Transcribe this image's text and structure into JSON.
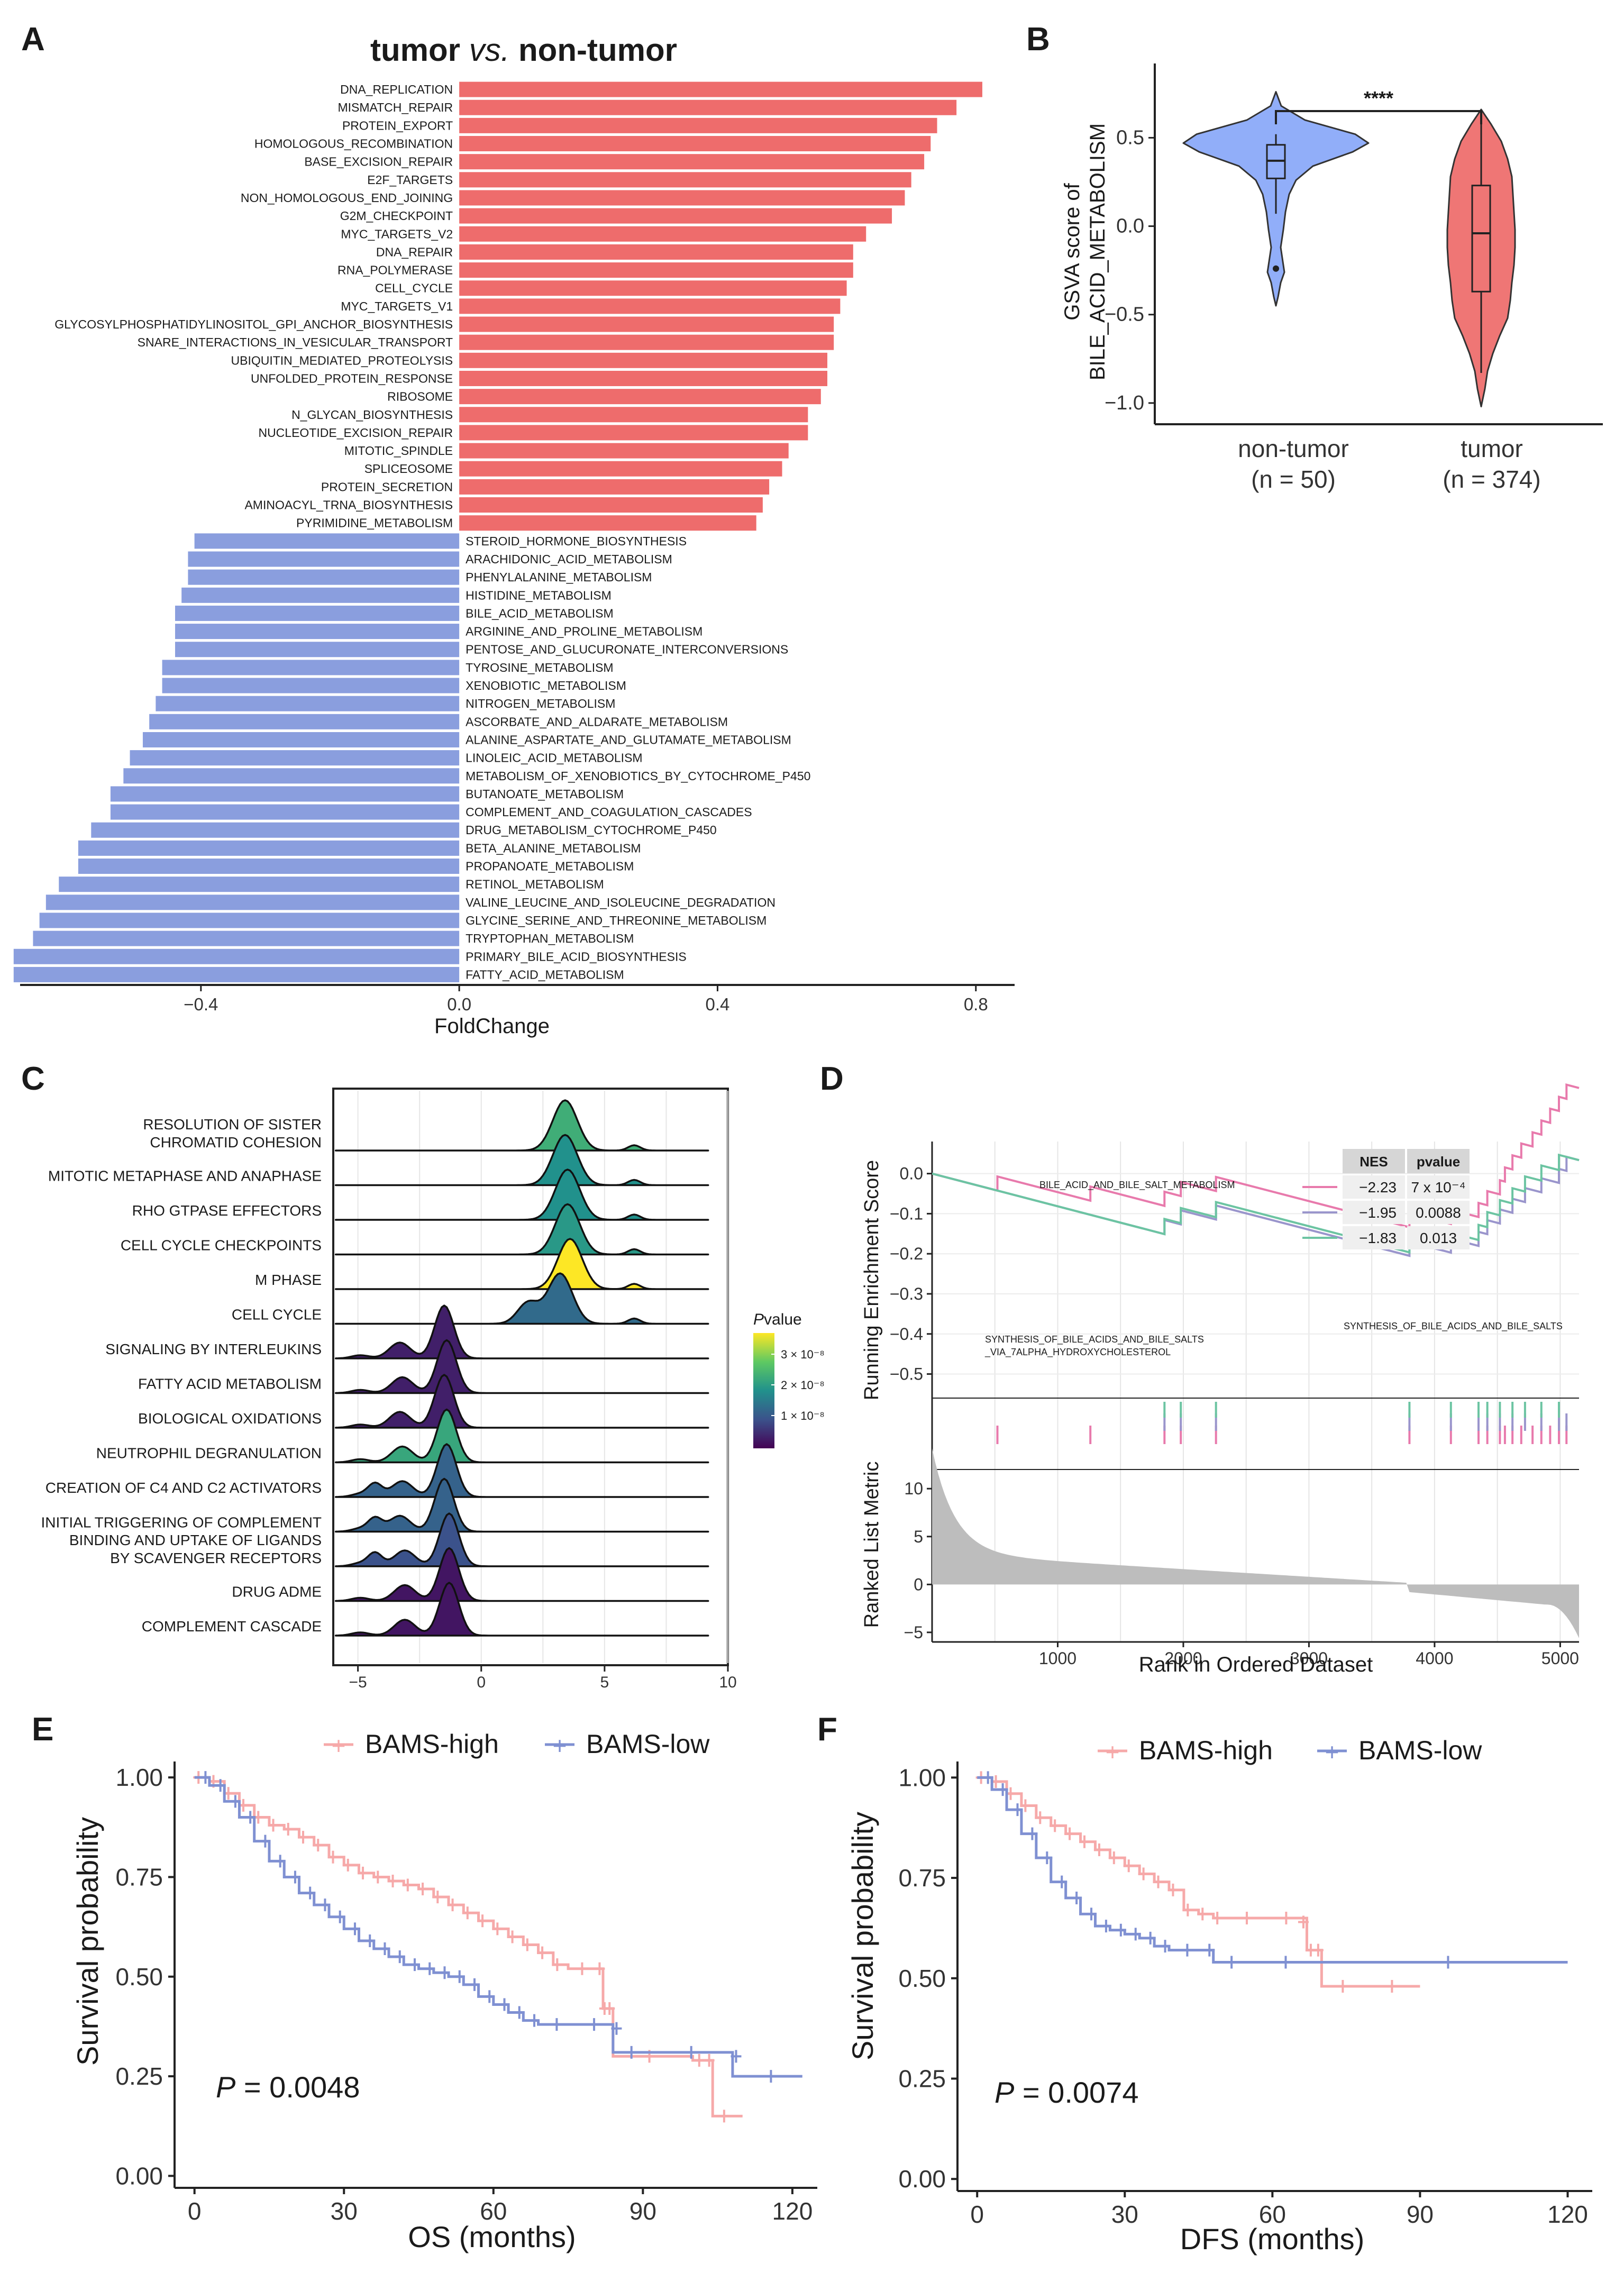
{
  "panels": {
    "a": "A",
    "b": "B",
    "c": "C",
    "d": "D",
    "e": "E",
    "f": "F"
  },
  "colors": {
    "up": "#ee6c6c",
    "down": "#8a9ede",
    "high": "#f6a9a9",
    "low": "#7f90d2",
    "esPink": "#e87aac",
    "esPurple": "#9a95cc",
    "esGreen": "#6cc4a2",
    "rank": "#bdbdbd"
  },
  "chart_data": [
    {
      "id": "A",
      "type": "bar",
      "orientation": "horizontal",
      "title": {
        "a": "tumor ",
        "b": "vs.",
        "c": " non-tumor"
      },
      "xlabel": "FoldChange",
      "xlim": [
        -0.68,
        0.86
      ],
      "xticks": [
        -0.4,
        0.0,
        0.4,
        0.8
      ],
      "xtick_labels": [
        "−0.4",
        "0.0",
        "0.4",
        "0.8"
      ],
      "categories": [
        "DNA_REPLICATION",
        "MISMATCH_REPAIR",
        "PROTEIN_EXPORT",
        "HOMOLOGOUS_RECOMBINATION",
        "BASE_EXCISION_REPAIR",
        "E2F_TARGETS",
        "NON_HOMOLOGOUS_END_JOINING",
        "G2M_CHECKPOINT",
        "MYC_TARGETS_V2",
        "DNA_REPAIR",
        "RNA_POLYMERASE",
        "CELL_CYCLE",
        "MYC_TARGETS_V1",
        "GLYCOSYLPHOSPHATIDYLINOSITOL_GPI_ANCHOR_BIOSYNTHESIS",
        "SNARE_INTERACTIONS_IN_VESICULAR_TRANSPORT",
        "UBIQUITIN_MEDIATED_PROTEOLYSIS",
        "UNFOLDED_PROTEIN_RESPONSE",
        "RIBOSOME",
        "N_GLYCAN_BIOSYNTHESIS",
        "NUCLEOTIDE_EXCISION_REPAIR",
        "MITOTIC_SPINDLE",
        "SPLICEOSOME",
        "PROTEIN_SECRETION",
        "AMINOACYL_TRNA_BIOSYNTHESIS",
        "PYRIMIDINE_METABOLISM",
        "STEROID_HORMONE_BIOSYNTHESIS",
        "ARACHIDONIC_ACID_METABOLISM",
        "PHENYLALANINE_METABOLISM",
        "HISTIDINE_METABOLISM",
        "BILE_ACID_METABOLISM",
        "ARGININE_AND_PROLINE_METABOLISM",
        "PENTOSE_AND_GLUCURONATE_INTERCONVERSIONS",
        "TYROSINE_METABOLISM",
        "XENOBIOTIC_METABOLISM",
        "NITROGEN_METABOLISM",
        "ASCORBATE_AND_ALDARATE_METABOLISM",
        "ALANINE_ASPARTATE_AND_GLUTAMATE_METABOLISM",
        "LINOLEIC_ACID_METABOLISM",
        "METABOLISM_OF_XENOBIOTICS_BY_CYTOCHROME_P450",
        "BUTANOATE_METABOLISM",
        "COMPLEMENT_AND_COAGULATION_CASCADES",
        "DRUG_METABOLISM_CYTOCHROME_P450",
        "BETA_ALANINE_METABOLISM",
        "PROPANOATE_METABOLISM",
        "RETINOL_METABOLISM",
        "VALINE_LEUCINE_AND_ISOLEUCINE_DEGRADATION",
        "GLYCINE_SERINE_AND_THREONINE_METABOLISM",
        "TRYPTOPHAN_METABOLISM",
        "PRIMARY_BILE_ACID_BIOSYNTHESIS",
        "FATTY_ACID_METABOLISM"
      ],
      "values": [
        0.81,
        0.77,
        0.74,
        0.73,
        0.72,
        0.7,
        0.69,
        0.67,
        0.63,
        0.61,
        0.61,
        0.6,
        0.59,
        0.58,
        0.58,
        0.57,
        0.57,
        0.56,
        0.54,
        0.54,
        0.51,
        0.5,
        0.48,
        0.47,
        0.46,
        -0.41,
        -0.42,
        -0.42,
        -0.43,
        -0.44,
        -0.44,
        -0.44,
        -0.46,
        -0.46,
        -0.47,
        -0.48,
        -0.49,
        -0.51,
        -0.52,
        -0.54,
        -0.54,
        -0.57,
        -0.59,
        -0.59,
        -0.62,
        -0.64,
        -0.65,
        -0.66,
        -0.69,
        -0.69
      ]
    },
    {
      "id": "B",
      "type": "violin",
      "ylabel_line1": "GSVA score of",
      "ylabel_line2": "BILE_ACID_METABOLISM",
      "ylim": [
        -1.12,
        0.92
      ],
      "yticks": [
        0.5,
        0.0,
        -0.5,
        -1.0
      ],
      "ytick_labels": [
        "0.5",
        "0.0",
        "−0.5",
        "−1.0"
      ],
      "groups": [
        {
          "name": "non-tumor",
          "n": "(n = 50)",
          "median": 0.37,
          "q1": 0.27,
          "q3": 0.46,
          "whisker_low": 0.07,
          "whisker_high": 0.52,
          "outliers": [
            -0.24
          ],
          "min": -0.45,
          "max": 0.76
        },
        {
          "name": "tumor",
          "n": "(n = 374)",
          "median": -0.04,
          "q1": -0.37,
          "q3": 0.23,
          "whisker_low": -0.83,
          "whisker_high": 0.65,
          "outliers": [],
          "min": -1.02,
          "max": 0.66
        }
      ],
      "significance": "****"
    },
    {
      "id": "C",
      "type": "ridgeline",
      "xlim": [
        -6,
        10
      ],
      "xticks": [
        -5,
        0,
        5,
        10
      ],
      "xtick_labels": [
        "−5",
        "0",
        "5",
        "10"
      ],
      "pathways": [
        "RESOLUTION OF SISTER|CHROMATID COHESION",
        "MITOTIC METAPHASE AND ANAPHASE",
        "RHO GTPASE EFFECTORS",
        "CELL CYCLE CHECKPOINTS",
        "M PHASE",
        "CELL CYCLE",
        "SIGNALING BY INTERLEUKINS",
        "FATTY ACID METABOLISM",
        "BIOLOGICAL OXIDATIONS",
        "NEUTROPHIL DEGRANULATION",
        "CREATION OF C4 AND C2 ACTIVATORS",
        "INITIAL TRIGGERING OF COMPLEMENT",
        "BINDING AND UPTAKE OF LIGANDS|BY SCAVENGER RECEPTORS",
        "DRUG ADME",
        "COMPLEMENT CASCADE"
      ],
      "peak_x": [
        3.4,
        3.4,
        3.5,
        3.5,
        3.6,
        3.2,
        -1.5,
        -1.4,
        -1.5,
        -1.4,
        -1.4,
        -1.5,
        -1.3,
        -1.3,
        -1.3
      ],
      "pvalue": [
        2e-08,
        1.6e-08,
        1.6e-08,
        1.7e-08,
        3.2e-08,
        1.1e-08,
        3e-09,
        3e-09,
        3e-09,
        1.9e-08,
        1e-08,
        1e-08,
        8e-09,
        2e-09,
        2e-09
      ],
      "legend_title": "Pvalue",
      "legend_title_lead": "P",
      "legend_title_rest": "value",
      "legend_ticks": [
        1e-08,
        2e-08,
        3e-08
      ],
      "legend_labels": [
        "3 × 10⁻⁸",
        "2 × 10⁻⁸",
        "1 × 10⁻⁸"
      ]
    },
    {
      "id": "D",
      "type": "gsea",
      "ylabel_top": "Running Enrichment Score",
      "ylabel_bottom": "Ranked List Metric",
      "xlabel": "Rank in Ordered Dataset",
      "es_ylim": [
        -0.56,
        0.08
      ],
      "es_yticks": [
        0.0,
        -0.1,
        -0.2,
        -0.3,
        -0.4,
        -0.5
      ],
      "es_ytick_labels": [
        "0.0",
        "−0.1",
        "−0.2",
        "−0.3",
        "−0.4",
        "−0.5"
      ],
      "metric_ylim": [
        -6,
        12
      ],
      "metric_yticks": [
        10,
        5,
        0,
        -5
      ],
      "metric_ytick_labels": [
        "10",
        "5",
        "0",
        "−5"
      ],
      "xlim": [
        0,
        5150
      ],
      "xticks": [
        1000,
        2000,
        3000,
        4000,
        5000
      ],
      "xtick_labels": [
        "1000",
        "2000",
        "3000",
        "4000",
        "5000"
      ],
      "gene_sets": [
        {
          "name": "BILE_ACID_AND_BILE_SALT_METABOLISM",
          "NES": "−2.23",
          "pvalue": "7 x 10⁻⁴",
          "color": "#e87aac",
          "hits": [
            520,
            1260,
            1850,
            1980,
            2260,
            3800,
            4130,
            4350,
            4420,
            4520,
            4560,
            4620,
            4690,
            4780,
            4850,
            4920,
            4990,
            5050
          ]
        },
        {
          "name": "SYNTHESIS_OF_BILE_ACIDS_AND_BILE_SALTS",
          "NES": "−1.95",
          "pvalue": "0.0088",
          "color": "#9a95cc",
          "hits": [
            1850,
            1980,
            2260,
            3800,
            4130,
            4350,
            4420,
            4520,
            4620,
            4720,
            4850,
            4990,
            5050
          ]
        },
        {
          "name": "SYNTHESIS_OF_BILE_ACIDS_AND_BILE_SALTS_VIA_7ALPHA_HYDROXYCHOLESTEROL",
          "NES": "−1.83",
          "pvalue": "0.013",
          "color": "#6cc4a2",
          "hits": [
            1850,
            1980,
            2260,
            3800,
            4130,
            4350,
            4420,
            4520,
            4620,
            4720,
            4850,
            4990
          ]
        }
      ],
      "table_headers": [
        "NES",
        "pvalue"
      ],
      "annotations": {
        "a": "BILE_ACID_AND_BILE_SALT_METABOLISM",
        "b1": "SYNTHESIS_OF_BILE_ACIDS_AND_BILE_SALTS",
        "b2": "_VIA_7ALPHA_HYDROXYCHOLESTEROL",
        "c": "SYNTHESIS_OF_BILE_ACIDS_AND_BILE_SALTS"
      }
    },
    {
      "id": "E",
      "type": "survival",
      "xlabel": "OS (months)",
      "ylabel": "Survival probability",
      "xlim": [
        -4,
        125
      ],
      "ylim": [
        -0.03,
        1.04
      ],
      "xticks": [
        0,
        30,
        60,
        90,
        120
      ],
      "xtick_labels": [
        "0",
        "30",
        "60",
        "90",
        "120"
      ],
      "yticks": [
        0,
        0.25,
        0.5,
        0.75,
        1.0
      ],
      "ytick_labels": [
        "0.00",
        "0.25",
        "0.50",
        "0.75",
        "1.00"
      ],
      "p_text": "P = 0.0048",
      "p_lead": "P",
      "p_rest": " = 0.0048",
      "series": [
        {
          "name": "BAMS-high",
          "color": "#f6a9a9",
          "points": [
            [
              0,
              1
            ],
            [
              3,
              0.99
            ],
            [
              6,
              0.96
            ],
            [
              9,
              0.93
            ],
            [
              12,
              0.9
            ],
            [
              15,
              0.88
            ],
            [
              18,
              0.87
            ],
            [
              21,
              0.85
            ],
            [
              24,
              0.83
            ],
            [
              27,
              0.8
            ],
            [
              30,
              0.78
            ],
            [
              33,
              0.76
            ],
            [
              36,
              0.75
            ],
            [
              39,
              0.74
            ],
            [
              42,
              0.73
            ],
            [
              45,
              0.72
            ],
            [
              48,
              0.7
            ],
            [
              51,
              0.68
            ],
            [
              54,
              0.66
            ],
            [
              57,
              0.64
            ],
            [
              60,
              0.62
            ],
            [
              63,
              0.6
            ],
            [
              66,
              0.58
            ],
            [
              69,
              0.56
            ],
            [
              72,
              0.53
            ],
            [
              75,
              0.52
            ],
            [
              82,
              0.52
            ],
            [
              82,
              0.42
            ],
            [
              84,
              0.42
            ],
            [
              84,
              0.3
            ],
            [
              100,
              0.29
            ],
            [
              104,
              0.29
            ],
            [
              104,
              0.15
            ],
            [
              110,
              0.15
            ]
          ]
        },
        {
          "name": "BAMS-low",
          "color": "#7f90d2",
          "points": [
            [
              0,
              1
            ],
            [
              3,
              0.98
            ],
            [
              6,
              0.94
            ],
            [
              9,
              0.9
            ],
            [
              12,
              0.84
            ],
            [
              15,
              0.79
            ],
            [
              18,
              0.75
            ],
            [
              21,
              0.71
            ],
            [
              24,
              0.68
            ],
            [
              27,
              0.65
            ],
            [
              30,
              0.62
            ],
            [
              33,
              0.59
            ],
            [
              36,
              0.57
            ],
            [
              39,
              0.55
            ],
            [
              42,
              0.53
            ],
            [
              45,
              0.52
            ],
            [
              48,
              0.51
            ],
            [
              51,
              0.5
            ],
            [
              54,
              0.48
            ],
            [
              57,
              0.45
            ],
            [
              60,
              0.43
            ],
            [
              63,
              0.41
            ],
            [
              66,
              0.39
            ],
            [
              69,
              0.38
            ],
            [
              75,
              0.38
            ],
            [
              84,
              0.37
            ],
            [
              84,
              0.31
            ],
            [
              90,
              0.31
            ],
            [
              108,
              0.3
            ],
            [
              108,
              0.25
            ],
            [
              122,
              0.25
            ]
          ]
        }
      ]
    },
    {
      "id": "F",
      "type": "survival",
      "xlabel": "DFS (months)",
      "ylabel": "Survival probability",
      "xlim": [
        -4,
        125
      ],
      "ylim": [
        -0.03,
        1.04
      ],
      "xticks": [
        0,
        30,
        60,
        90,
        120
      ],
      "xtick_labels": [
        "0",
        "30",
        "60",
        "90",
        "120"
      ],
      "yticks": [
        0,
        0.25,
        0.5,
        0.75,
        1.0
      ],
      "ytick_labels": [
        "0.00",
        "0.25",
        "0.50",
        "0.75",
        "1.00"
      ],
      "p_text": "P = 0.0074",
      "p_lead": "P",
      "p_rest": " = 0.0074",
      "series": [
        {
          "name": "BAMS-high",
          "color": "#f6a9a9",
          "points": [
            [
              0,
              1
            ],
            [
              3,
              0.99
            ],
            [
              6,
              0.96
            ],
            [
              9,
              0.93
            ],
            [
              12,
              0.9
            ],
            [
              15,
              0.88
            ],
            [
              18,
              0.86
            ],
            [
              21,
              0.84
            ],
            [
              24,
              0.82
            ],
            [
              27,
              0.8
            ],
            [
              30,
              0.78
            ],
            [
              33,
              0.76
            ],
            [
              36,
              0.74
            ],
            [
              39,
              0.72
            ],
            [
              42,
              0.67
            ],
            [
              45,
              0.66
            ],
            [
              48,
              0.65
            ],
            [
              51,
              0.65
            ],
            [
              60,
              0.65
            ],
            [
              67,
              0.64
            ],
            [
              67,
              0.57
            ],
            [
              70,
              0.57
            ],
            [
              70,
              0.48
            ],
            [
              80,
              0.48
            ],
            [
              90,
              0.48
            ]
          ]
        },
        {
          "name": "BAMS-low",
          "color": "#7f90d2",
          "points": [
            [
              0,
              1
            ],
            [
              3,
              0.97
            ],
            [
              6,
              0.92
            ],
            [
              9,
              0.86
            ],
            [
              12,
              0.8
            ],
            [
              15,
              0.74
            ],
            [
              18,
              0.7
            ],
            [
              21,
              0.66
            ],
            [
              24,
              0.63
            ],
            [
              27,
              0.62
            ],
            [
              30,
              0.61
            ],
            [
              33,
              0.6
            ],
            [
              36,
              0.58
            ],
            [
              39,
              0.57
            ],
            [
              45,
              0.57
            ],
            [
              48,
              0.54
            ],
            [
              54,
              0.54
            ],
            [
              70,
              0.54
            ],
            [
              120,
              0.54
            ]
          ]
        }
      ]
    }
  ],
  "legendE": {
    "high": "BAMS-high",
    "low": "BAMS-low"
  },
  "legendF": {
    "high": "BAMS-high",
    "low": "BAMS-low"
  }
}
